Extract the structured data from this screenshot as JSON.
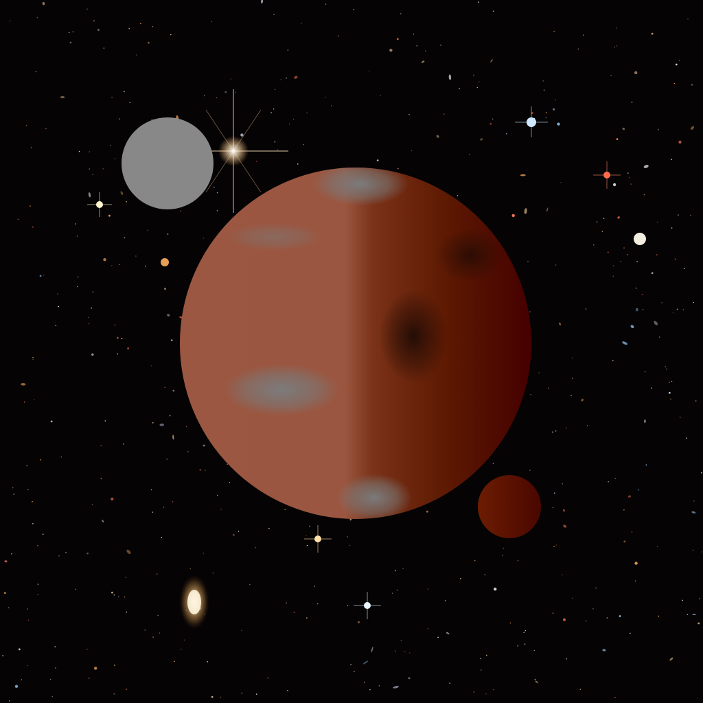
{
  "scene": {
    "background_color": "#050304",
    "description_icons": [
      "starfield",
      "planet",
      "moon",
      "small-moon"
    ]
  },
  "planet": {
    "light_color": "#9a5640",
    "dark_color": "#4a0000",
    "mid_color": "#6e2410",
    "patch_color": "#7a7a7a"
  },
  "moon_gray": {
    "color": "#888888"
  },
  "moon_red": {
    "color_light": "#6a1a00",
    "color_dark": "#4a0800"
  },
  "star_colors": [
    "#ffffff",
    "#ffd9a0",
    "#9fd4ff",
    "#ff7a5a",
    "#e0e8ff",
    "#ffb060"
  ]
}
